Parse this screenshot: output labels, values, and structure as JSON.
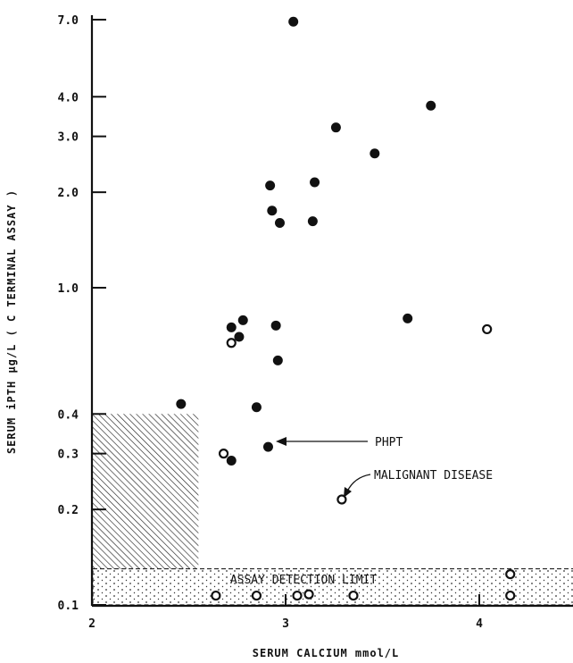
{
  "chart_data": {
    "type": "scatter",
    "xlabel": "SERUM CALCIUM  mmol/L",
    "ylabel": "SERUM iPTH μg/L   ( C TERMINAL ASSAY )",
    "x_scale": "linear",
    "y_scale": "log",
    "xlim": [
      2,
      4.5
    ],
    "ylim": [
      0.1,
      7.0
    ],
    "x_ticks": [
      "2",
      "3",
      "4"
    ],
    "x_tick_values": [
      2,
      3,
      4
    ],
    "y_ticks": [
      "0.1",
      "0.2",
      "0.3",
      "0.4",
      "1.0",
      "2.0",
      "3.0",
      "4.0",
      "7.0"
    ],
    "y_tick_values": [
      0.1,
      0.2,
      0.3,
      0.4,
      1.0,
      2.0,
      3.0,
      4.0,
      7.0
    ],
    "grid": false,
    "series": [
      {
        "marker": "filled",
        "points": [
          {
            "x": 3.04,
            "y": 6.9
          },
          {
            "x": 3.75,
            "y": 3.75
          },
          {
            "x": 3.26,
            "y": 3.2
          },
          {
            "x": 3.46,
            "y": 2.65
          },
          {
            "x": 2.92,
            "y": 2.1
          },
          {
            "x": 3.15,
            "y": 2.15
          },
          {
            "x": 2.93,
            "y": 1.75
          },
          {
            "x": 2.97,
            "y": 1.6
          },
          {
            "x": 3.14,
            "y": 1.62
          },
          {
            "x": 3.63,
            "y": 0.8
          },
          {
            "x": 2.78,
            "y": 0.79
          },
          {
            "x": 2.72,
            "y": 0.75
          },
          {
            "x": 2.95,
            "y": 0.76
          },
          {
            "x": 2.76,
            "y": 0.7
          },
          {
            "x": 2.96,
            "y": 0.59
          },
          {
            "x": 2.46,
            "y": 0.43
          },
          {
            "x": 2.85,
            "y": 0.42
          },
          {
            "x": 2.91,
            "y": 0.315
          },
          {
            "x": 2.72,
            "y": 0.285
          }
        ]
      },
      {
        "marker": "open",
        "points": [
          {
            "x": 4.04,
            "y": 0.74
          },
          {
            "x": 2.72,
            "y": 0.67
          },
          {
            "x": 2.68,
            "y": 0.3
          },
          {
            "x": 3.29,
            "y": 0.215
          },
          {
            "x": 4.16,
            "y": 0.125
          },
          {
            "x": 2.64,
            "y": 0.107
          },
          {
            "x": 2.85,
            "y": 0.107
          },
          {
            "x": 3.06,
            "y": 0.107
          },
          {
            "x": 3.12,
            "y": 0.108
          },
          {
            "x": 3.35,
            "y": 0.107
          },
          {
            "x": 4.16,
            "y": 0.107
          }
        ]
      }
    ],
    "regions": {
      "normal_range": {
        "x": [
          2,
          2.55
        ],
        "y": [
          0.13,
          0.4
        ]
      },
      "detection_limit": {
        "y_max": 0.13,
        "label": "ASSAY DETECTION LIMIT"
      }
    },
    "annotations": [
      {
        "text": "PHPT",
        "point": {
          "x": 2.91,
          "y": 0.315
        }
      },
      {
        "text": "MALIGNANT DISEASE",
        "point": {
          "x": 3.29,
          "y": 0.215
        }
      }
    ]
  }
}
